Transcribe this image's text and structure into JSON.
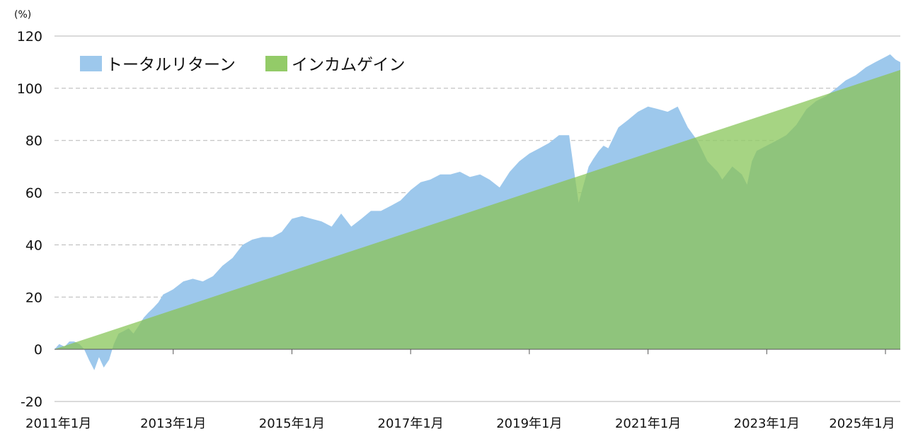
{
  "chart_data": {
    "type": "area",
    "unit_label": "(%)",
    "ylim": [
      -20,
      120
    ],
    "yticks": [
      120,
      100,
      80,
      60,
      40,
      20,
      0,
      -20
    ],
    "xtick_labels": [
      {
        "label": "2011年1月",
        "x": 2011.0
      },
      {
        "label": "2013年1月",
        "x": 2013.0
      },
      {
        "label": "2015年1月",
        "x": 2015.0
      },
      {
        "label": "2017年1月",
        "x": 2017.0
      },
      {
        "label": "2019年1月",
        "x": 2019.0
      },
      {
        "label": "2021年1月",
        "x": 2021.0
      },
      {
        "label": "2023年1月",
        "x": 2023.0
      },
      {
        "label": "2025年1月",
        "x": 2025.0
      }
    ],
    "xlim": [
      2011.0,
      2025.25
    ],
    "grid": "horizontal-dashed",
    "legend_position": "top-left",
    "series": [
      {
        "name": "トータルリターン",
        "color": "#9dc8ec",
        "x": [
          2011.0,
          2011.08,
          2011.17,
          2011.25,
          2011.33,
          2011.42,
          2011.5,
          2011.58,
          2011.67,
          2011.75,
          2011.83,
          2011.92,
          2012.0,
          2012.08,
          2012.17,
          2012.25,
          2012.33,
          2012.42,
          2012.5,
          2012.58,
          2012.67,
          2012.75,
          2012.83,
          2012.92,
          2013.0,
          2013.17,
          2013.33,
          2013.5,
          2013.67,
          2013.83,
          2014.0,
          2014.17,
          2014.33,
          2014.5,
          2014.67,
          2014.83,
          2015.0,
          2015.17,
          2015.33,
          2015.5,
          2015.67,
          2015.83,
          2016.0,
          2016.17,
          2016.33,
          2016.5,
          2016.67,
          2016.83,
          2017.0,
          2017.17,
          2017.33,
          2017.5,
          2017.67,
          2017.83,
          2018.0,
          2018.17,
          2018.33,
          2018.5,
          2018.67,
          2018.83,
          2019.0,
          2019.17,
          2019.33,
          2019.5,
          2019.67,
          2019.83,
          2020.0,
          2020.08,
          2020.17,
          2020.25,
          2020.33,
          2020.5,
          2020.67,
          2020.83,
          2021.0,
          2021.17,
          2021.33,
          2021.5,
          2021.67,
          2021.83,
          2022.0,
          2022.17,
          2022.25,
          2022.42,
          2022.58,
          2022.67,
          2022.75,
          2022.83,
          2023.0,
          2023.17,
          2023.33,
          2023.5,
          2023.67,
          2023.83,
          2024.0,
          2024.17,
          2024.33,
          2024.5,
          2024.67,
          2024.83,
          2025.0,
          2025.08,
          2025.17,
          2025.25
        ],
        "values": [
          0,
          2,
          1,
          3,
          3,
          2,
          0,
          -4,
          -8,
          -3,
          -7,
          -4,
          2,
          6,
          7,
          8,
          6,
          9,
          12,
          14,
          16,
          18,
          21,
          22,
          23,
          26,
          27,
          26,
          28,
          32,
          35,
          40,
          42,
          43,
          43,
          45,
          50,
          51,
          50,
          49,
          47,
          52,
          47,
          50,
          53,
          53,
          55,
          57,
          61,
          64,
          65,
          67,
          67,
          68,
          66,
          67,
          65,
          62,
          68,
          72,
          75,
          77,
          79,
          82,
          82,
          56,
          70,
          73,
          76,
          78,
          77,
          85,
          88,
          91,
          93,
          92,
          91,
          93,
          85,
          80,
          72,
          68,
          65,
          70,
          67,
          63,
          72,
          76,
          78,
          80,
          82,
          86,
          92,
          95,
          97,
          100,
          103,
          105,
          108,
          110,
          112,
          113,
          111,
          110
        ]
      },
      {
        "name": "インカムゲイン",
        "color": "#93cb68",
        "x": [
          2011.0,
          2025.25
        ],
        "values": [
          0,
          107
        ]
      }
    ]
  }
}
